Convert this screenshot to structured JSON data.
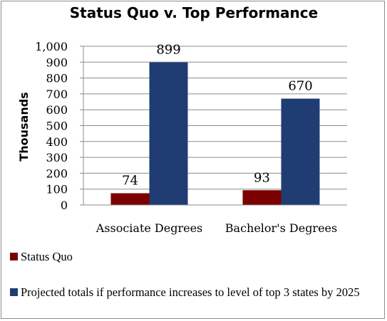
{
  "chart_data": {
    "type": "bar",
    "title": "Status Quo v. Top Performance",
    "ylabel": "Thousands",
    "xlabel": "",
    "ylim": [
      0,
      1000
    ],
    "yticks": [
      0,
      100,
      200,
      300,
      400,
      500,
      600,
      700,
      800,
      900,
      1000
    ],
    "ytick_labels": [
      "0",
      "100",
      "200",
      "300",
      "400",
      "500",
      "600",
      "700",
      "800",
      "900",
      "1,000"
    ],
    "grid": true,
    "legend_position": "bottom",
    "categories": [
      "Associate Degrees",
      "Bachelor's Degrees"
    ],
    "series": [
      {
        "name": "Status Quo",
        "values": [
          74,
          93
        ],
        "color": "#7b0000"
      },
      {
        "name": "Projected totals if performance increases to level of top 3 states by 2025",
        "values": [
          899,
          670
        ],
        "color": "#1f3d73"
      }
    ],
    "data_labels": [
      "74",
      "93",
      "899",
      "670"
    ]
  }
}
